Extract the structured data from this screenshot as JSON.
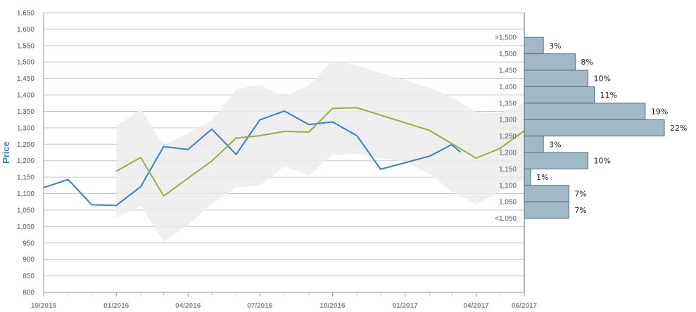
{
  "chart_data": {
    "type": "line",
    "ylabel": "Price",
    "ylim": [
      800,
      1650
    ],
    "yticks": [
      800,
      850,
      900,
      950,
      1000,
      1050,
      1100,
      1150,
      1200,
      1250,
      1300,
      1350,
      1400,
      1450,
      1500,
      1550,
      1600,
      1650
    ],
    "ytick_labels": [
      "800",
      "850",
      "900",
      "950",
      "1,000",
      "1,050",
      "1,100",
      "1,150",
      "1,200",
      "1,250",
      "1,300",
      "1,350",
      "1,400",
      "1,450",
      "1,500",
      "1,550",
      "1,600",
      "1,650"
    ],
    "xlim": [
      "2015-10-01",
      "2017-06-01"
    ],
    "x_tick_labels": [
      {
        "date": "2015-10-01",
        "label": "10/2015"
      },
      {
        "date": "2016-01-01",
        "label": "01/2016"
      },
      {
        "date": "2016-04-01",
        "label": "04/2016"
      },
      {
        "date": "2016-07-01",
        "label": "07/2016"
      },
      {
        "date": "2016-10-01",
        "label": "10/2016"
      },
      {
        "date": "2017-01-01",
        "label": "01/2017"
      },
      {
        "date": "2017-04-01",
        "label": "04/2017"
      },
      {
        "date": "2017-06-01",
        "label": "06/2017"
      }
    ],
    "grid": "horizontal",
    "colors": {
      "price": "#3a7dc9",
      "average": "#8db04a",
      "band": "#ececec",
      "bar_fill": "#a2b8c4",
      "bar_stroke": "#4d6b7c"
    },
    "series": [
      {
        "key": "price",
        "points": [
          [
            "2015-10-01",
            1118
          ],
          [
            "2015-11-01",
            1143
          ],
          [
            "2015-12-01",
            1066
          ],
          [
            "2016-01-01",
            1064
          ],
          [
            "2016-02-01",
            1121
          ],
          [
            "2016-03-01",
            1243
          ],
          [
            "2016-04-01",
            1234
          ],
          [
            "2016-05-01",
            1296
          ],
          [
            "2016-06-01",
            1219
          ],
          [
            "2016-07-01",
            1324
          ],
          [
            "2016-08-01",
            1351
          ],
          [
            "2016-09-01",
            1310
          ],
          [
            "2016-10-01",
            1318
          ],
          [
            "2016-11-01",
            1276
          ],
          [
            "2016-12-01",
            1174
          ],
          [
            "2017-02-01",
            1214
          ],
          [
            "2017-03-01",
            1249
          ],
          [
            "2017-03-12",
            1226
          ]
        ]
      },
      {
        "key": "average",
        "points": [
          [
            "2016-01-01",
            1168
          ],
          [
            "2016-02-01",
            1210
          ],
          [
            "2016-03-01",
            1093
          ],
          [
            "2016-05-01",
            1199
          ],
          [
            "2016-06-01",
            1269
          ],
          [
            "2016-07-01",
            1276
          ],
          [
            "2016-08-01",
            1289
          ],
          [
            "2016-09-01",
            1287
          ],
          [
            "2016-10-01",
            1359
          ],
          [
            "2016-11-01",
            1361
          ],
          [
            "2017-02-01",
            1292
          ],
          [
            "2017-04-01",
            1208
          ],
          [
            "2017-05-01",
            1237
          ],
          [
            "2017-06-01",
            1291
          ]
        ]
      }
    ],
    "range_band": {
      "upper": [
        [
          "2016-01-01",
          1305
        ],
        [
          "2016-02-01",
          1357
        ],
        [
          "2016-03-01",
          1247
        ],
        [
          "2016-04-01",
          1285
        ],
        [
          "2016-05-01",
          1323
        ],
        [
          "2016-06-01",
          1418
        ],
        [
          "2016-07-01",
          1430
        ],
        [
          "2016-08-01",
          1395
        ],
        [
          "2016-09-01",
          1428
        ],
        [
          "2016-10-01",
          1503
        ],
        [
          "2016-11-01",
          1490
        ],
        [
          "2017-02-01",
          1422
        ],
        [
          "2017-03-01",
          1393
        ],
        [
          "2017-04-01",
          1348
        ],
        [
          "2017-05-01",
          1345
        ],
        [
          "2017-06-01",
          1377
        ]
      ],
      "lower": [
        [
          "2016-01-01",
          1027
        ],
        [
          "2016-02-01",
          1063
        ],
        [
          "2016-03-01",
          953
        ],
        [
          "2016-04-01",
          1004
        ],
        [
          "2016-05-01",
          1068
        ],
        [
          "2016-06-01",
          1118
        ],
        [
          "2016-07-01",
          1125
        ],
        [
          "2016-08-01",
          1183
        ],
        [
          "2016-09-01",
          1154
        ],
        [
          "2016-10-01",
          1218
        ],
        [
          "2016-11-01",
          1220
        ],
        [
          "2017-01-01",
          1196
        ],
        [
          "2017-02-01",
          1160
        ],
        [
          "2017-03-01",
          1106
        ],
        [
          "2017-04-01",
          1068
        ],
        [
          "2017-05-01",
          1105
        ],
        [
          "2017-06-01",
          1146
        ]
      ]
    },
    "histogram": {
      "type": "bar",
      "orientation": "horizontal",
      "bins": [
        {
          "label": ">1,500",
          "low": 1525,
          "high": 1575,
          "value": 3
        },
        {
          "label": "1,500",
          "low": 1475,
          "high": 1525,
          "value": 8
        },
        {
          "label": "1,450",
          "low": 1425,
          "high": 1475,
          "value": 10
        },
        {
          "label": "1,400",
          "low": 1375,
          "high": 1425,
          "value": 11
        },
        {
          "label": "1,350",
          "low": 1325,
          "high": 1375,
          "value": 19
        },
        {
          "label": "1,300",
          "low": 1275,
          "high": 1325,
          "value": 22
        },
        {
          "label": "1,250",
          "low": 1225,
          "high": 1275,
          "value": 3
        },
        {
          "label": "1,200",
          "low": 1175,
          "high": 1225,
          "value": 10
        },
        {
          "label": "1,150",
          "low": 1125,
          "high": 1175,
          "value": 1
        },
        {
          "label": "1,100",
          "low": 1075,
          "high": 1125,
          "value": 7
        },
        {
          "label": "1,050",
          "low": 1025,
          "high": 1075,
          "value": 7
        },
        {
          "label": "<1,050",
          "low": 1025,
          "high": 1025,
          "value": 0
        }
      ],
      "value_labels": [
        "3%",
        "8%",
        "10%",
        "11%",
        "19%",
        "22%",
        "3%",
        "10%",
        "1%",
        "7%",
        "7%"
      ],
      "unit": "%"
    }
  }
}
